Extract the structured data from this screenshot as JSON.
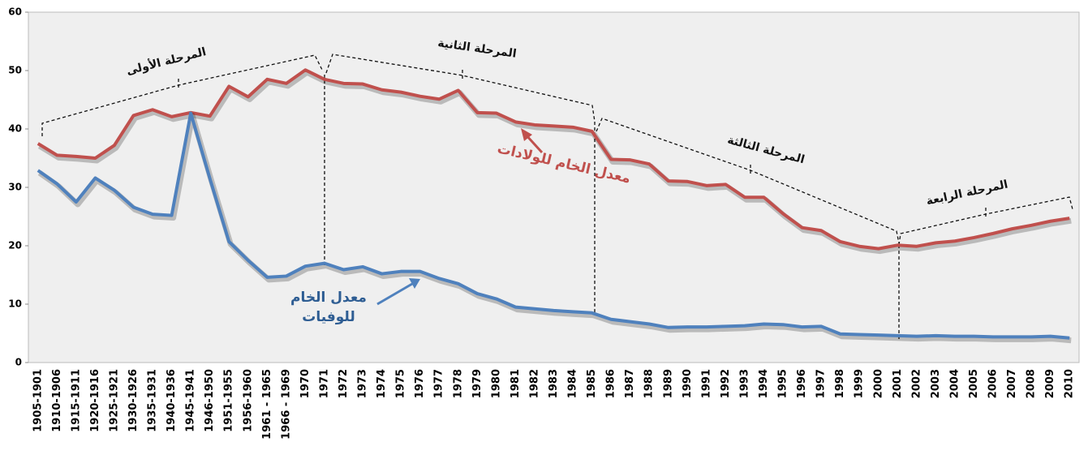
{
  "chart_data": {
    "type": "line",
    "categories": [
      "1905-1901",
      "1910-1906",
      "1915-1911",
      "1920-1916",
      "1925-1921",
      "1930-1926",
      "1935-1931",
      "1940-1936",
      "1945-1941",
      "1946-1950",
      "1951-1955",
      "1956-1960",
      "1961 - 1965",
      "1966 - 1969",
      "1970",
      "1971",
      "1972",
      "1973",
      "1974",
      "1975",
      "1976",
      "1977",
      "1978",
      "1979",
      "1980",
      "1981",
      "1982",
      "1983",
      "1984",
      "1985",
      "1986",
      "1987",
      "1988",
      "1989",
      "1990",
      "1991",
      "1992",
      "1993",
      "1994",
      "1995",
      "1996",
      "1997",
      "1998",
      "1999",
      "2000",
      "2001",
      "2002",
      "2003",
      "2004",
      "2005",
      "2006",
      "2007",
      "2008",
      "2009",
      "2010"
    ],
    "series": [
      {
        "name": "معدل الخام للولادات",
        "color": "#c0504d",
        "values": [
          37.5,
          35.5,
          35.3,
          35,
          37.2,
          42.3,
          43.3,
          42.1,
          42.8,
          42.2,
          47.3,
          45.5,
          48.5,
          47.8,
          50.1,
          48.5,
          47.8,
          47.7,
          46.7,
          46.3,
          45.6,
          45.1,
          46.6,
          42.8,
          42.7,
          41.2,
          40.7,
          40.5,
          40.3,
          39.6,
          34.8,
          34.7,
          34,
          31.1,
          31,
          30.3,
          30.5,
          28.3,
          28.3,
          25.5,
          23.1,
          22.6,
          20.7,
          19.9,
          19.5,
          20.1,
          19.9,
          20.5,
          20.8,
          21.4,
          22.1,
          22.9,
          23.5,
          24.2,
          24.7
        ]
      },
      {
        "name": "معدل الخام للوفيات",
        "color": "#4f81bd",
        "values": [
          32.9,
          30.6,
          27.5,
          31.6,
          29.5,
          26.6,
          25.4,
          25.2,
          42.7,
          31.5,
          20.7,
          17.5,
          14.6,
          14.8,
          16.5,
          17,
          15.9,
          16.4,
          15.2,
          15.6,
          15.6,
          14.4,
          13.5,
          11.8,
          10.9,
          9.5,
          9.2,
          8.9,
          8.7,
          8.5,
          7.4,
          7,
          6.6,
          6,
          6.1,
          6.1,
          6.2,
          6.3,
          6.6,
          6.5,
          6.1,
          6.2,
          4.9,
          4.8,
          4.7,
          4.6,
          4.5,
          4.6,
          4.5,
          4.5,
          4.4,
          4.4,
          4.4,
          4.5,
          4.2
        ]
      }
    ],
    "annotations": [
      "المرحلة الأولى",
      "المرحلة الثانية",
      "المرحلة الثالثة",
      "المرحلة الرابعة"
    ],
    "ylim": [
      0,
      60
    ],
    "yticks": [
      0,
      10,
      20,
      30,
      40,
      50,
      60
    ],
    "grid": false
  }
}
